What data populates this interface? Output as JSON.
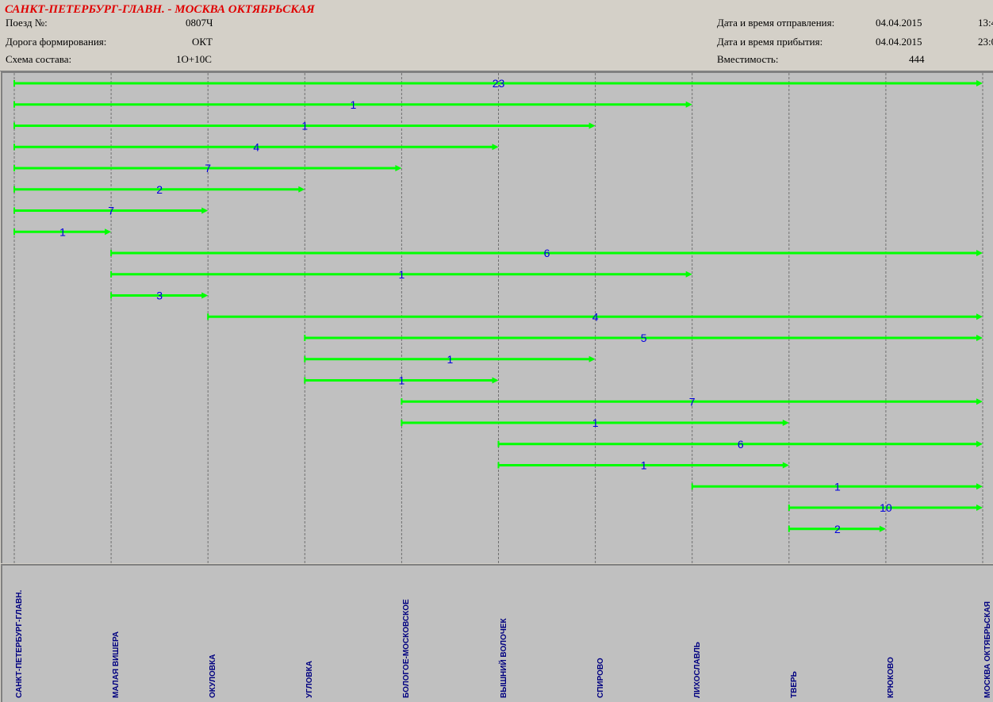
{
  "header": {
    "route_title": "САНКТ-ПЕТЕРБУРГ-ГЛАВН. - МОСКВА ОКТЯБРЬСКАЯ",
    "train_label": "Поезд №:",
    "train_value": "0807Ч",
    "road_label": "Дорога формирования:",
    "road_value": "ОКТ",
    "scheme_label": "Схема состава:",
    "scheme_value": "1О+10С",
    "departure_label": "Дата и время отправления:",
    "departure_date": "04.04.2015",
    "departure_time": "13:4",
    "arrival_label": "Дата и время прибытия:",
    "arrival_date": "04.04.2015",
    "arrival_time": "23:0",
    "capacity_label": "Вместимость:",
    "capacity_value": "444"
  },
  "stations": [
    "САНКТ-ПЕТЕРБУРГ-ГЛАВН.",
    "МАЛАЯ ВИШЕРА",
    "ОКУЛОВКА",
    "УГЛОВКА",
    "БОЛОГОЕ-МОСКОВСКОЕ",
    "ВЫШНИЙ ВОЛОЧЕК",
    "СПИРОВО",
    "ЛИХОСЛАВЛЬ",
    "ТВЕРЬ",
    "КРЮКОВО",
    "МОСКВА ОКТЯБРЬСКАЯ"
  ],
  "segments": [
    {
      "from": 0,
      "to": 10,
      "count": "23"
    },
    {
      "from": 0,
      "to": 7,
      "count": "1"
    },
    {
      "from": 0,
      "to": 6,
      "count": "1"
    },
    {
      "from": 0,
      "to": 5,
      "count": "4"
    },
    {
      "from": 0,
      "to": 4,
      "count": "7"
    },
    {
      "from": 0,
      "to": 3,
      "count": "2"
    },
    {
      "from": 0,
      "to": 2,
      "count": "7"
    },
    {
      "from": 0,
      "to": 1,
      "count": "1"
    },
    {
      "from": 1,
      "to": 10,
      "count": "6"
    },
    {
      "from": 1,
      "to": 7,
      "count": "1"
    },
    {
      "from": 1,
      "to": 2,
      "count": "3"
    },
    {
      "from": 2,
      "to": 10,
      "count": "4"
    },
    {
      "from": 3,
      "to": 10,
      "count": "5"
    },
    {
      "from": 3,
      "to": 6,
      "count": "1"
    },
    {
      "from": 3,
      "to": 5,
      "count": "1"
    },
    {
      "from": 4,
      "to": 10,
      "count": "7"
    },
    {
      "from": 4,
      "to": 8,
      "count": "1"
    },
    {
      "from": 5,
      "to": 10,
      "count": "6"
    },
    {
      "from": 5,
      "to": 8,
      "count": "1"
    },
    {
      "from": 7,
      "to": 10,
      "count": "1"
    },
    {
      "from": 8,
      "to": 10,
      "count": "10"
    },
    {
      "from": 8,
      "to": 9,
      "count": "2"
    }
  ],
  "colors": {
    "segment": "#00ff00",
    "label": "#0000dd",
    "title": "#e00000",
    "station": "#000080"
  }
}
